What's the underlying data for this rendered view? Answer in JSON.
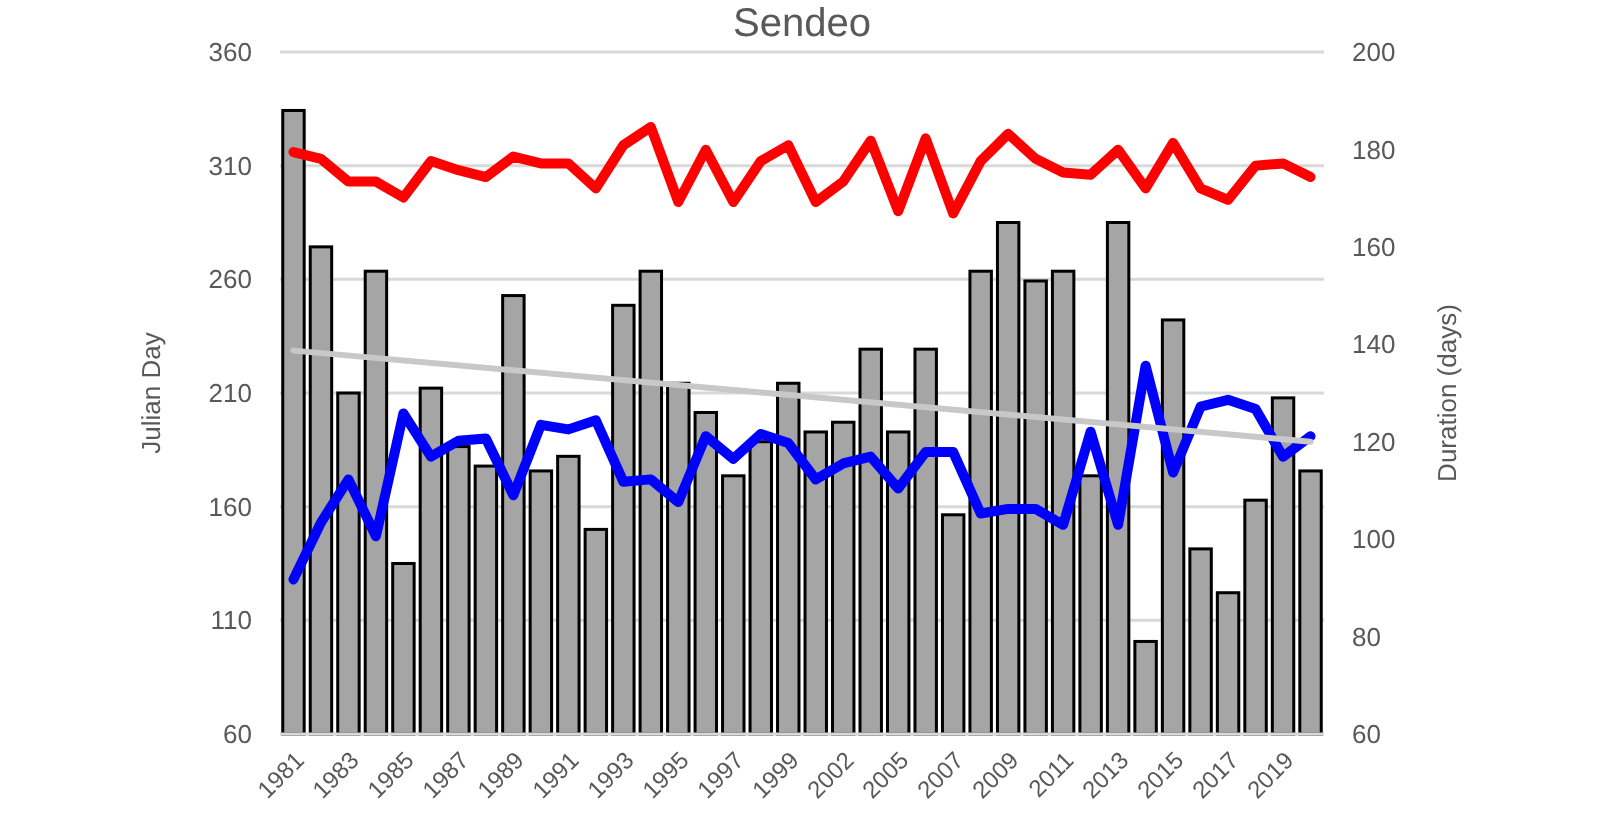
{
  "chart_data": {
    "type": "bar",
    "title": "Sendeo",
    "ylabel": "Julian Day",
    "y2label": "Duration (days)",
    "categories": [
      "1981",
      null,
      "1983",
      null,
      "1985",
      null,
      "1987",
      null,
      "1989",
      null,
      "1991",
      null,
      "1993",
      null,
      "1995",
      null,
      "1997",
      null,
      "1999",
      null,
      "2002",
      null,
      "2005",
      null,
      "2007",
      null,
      "2009",
      null,
      "2011",
      null,
      "2013",
      null,
      "2015",
      null,
      "2017",
      null,
      "2019",
      null
    ],
    "ylim": [
      60,
      360
    ],
    "yticks": [
      60,
      110,
      160,
      210,
      260,
      310,
      360
    ],
    "y2lim": [
      60,
      200
    ],
    "y2ticks": [
      60,
      80,
      100,
      120,
      140,
      160,
      180,
      200
    ],
    "grid": "y",
    "legend": false,
    "series": [
      {
        "axis": "y2",
        "color": "#a5a5a5",
        "values": [
          188,
          160,
          130,
          155,
          95,
          131,
          119,
          115,
          150,
          114,
          117,
          102,
          148,
          155,
          132,
          126,
          113,
          120,
          132,
          122,
          124,
          139,
          122,
          139,
          105,
          155,
          165,
          153,
          155,
          113,
          165,
          79,
          145,
          98,
          89,
          108,
          129,
          114
        ]
      },
      {
        "type": "line",
        "axis": "y",
        "color": "#ff0000",
        "values": [
          316,
          313,
          303,
          303,
          296,
          312,
          308,
          305,
          314,
          311,
          311,
          300,
          319,
          327,
          294,
          317,
          294,
          312,
          319,
          294,
          303,
          321,
          290,
          322,
          289,
          312,
          324,
          313,
          307,
          306,
          317,
          300,
          320,
          300,
          295,
          310,
          311,
          305
        ]
      },
      {
        "type": "line",
        "axis": "y",
        "color": "#0000ff",
        "values": [
          128,
          153,
          172,
          147,
          201,
          182,
          189,
          190,
          165,
          196,
          194,
          198,
          171,
          172,
          162,
          191,
          181,
          192,
          188,
          172,
          179,
          182,
          168,
          184,
          184,
          157,
          159,
          159,
          152,
          193,
          152,
          222,
          175,
          204,
          207,
          203,
          182,
          191
        ]
      },
      {
        "type": "line",
        "axis": "y2",
        "color": "#c8c8c8",
        "values": [
          138.7,
          null,
          null,
          null,
          null,
          null,
          null,
          null,
          null,
          null,
          null,
          null,
          null,
          null,
          null,
          null,
          null,
          null,
          null,
          null,
          null,
          null,
          null,
          null,
          null,
          null,
          null,
          null,
          null,
          null,
          null,
          null,
          null,
          null,
          null,
          null,
          null,
          120
        ]
      }
    ]
  }
}
